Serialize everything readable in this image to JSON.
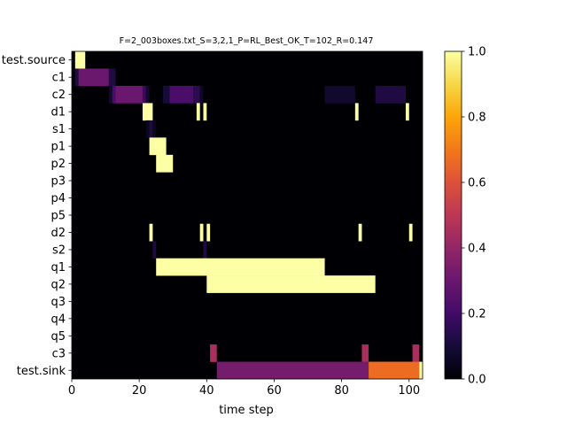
{
  "chart_data": {
    "type": "heatmap",
    "title": "F=2_003boxes.txt_S=3,2,1_P=RL_Best_OK_T=102_R=0.147",
    "xlabel": "time step",
    "ylabel": "",
    "xlim": [
      0,
      104
    ],
    "x_ticks": [
      0,
      20,
      40,
      60,
      80,
      100
    ],
    "rows": [
      "test.source",
      "c1",
      "c2",
      "d1",
      "s1",
      "p1",
      "p2",
      "p3",
      "p4",
      "p5",
      "d2",
      "s2",
      "q1",
      "q2",
      "q3",
      "q4",
      "q5",
      "c3",
      "test.sink"
    ],
    "background_value": 0.0,
    "segments": [
      {
        "row": "test.source",
        "x0": 1,
        "x1": 4,
        "value": 1.0
      },
      {
        "row": "c1",
        "x0": 0,
        "x1": 1,
        "value": 0.02
      },
      {
        "row": "c1",
        "x0": 1,
        "x1": 2,
        "value": 0.12
      },
      {
        "row": "c1",
        "x0": 2,
        "x1": 11,
        "value": 0.3
      },
      {
        "row": "c1",
        "x0": 11,
        "x1": 13,
        "value": 0.12
      },
      {
        "row": "c2",
        "x0": 11,
        "x1": 12,
        "value": 0.08
      },
      {
        "row": "c2",
        "x0": 12,
        "x1": 13,
        "value": 0.22
      },
      {
        "row": "c2",
        "x0": 13,
        "x1": 21,
        "value": 0.3
      },
      {
        "row": "c2",
        "x0": 21,
        "x1": 22,
        "value": 0.18
      },
      {
        "row": "c2",
        "x0": 22,
        "x1": 23,
        "value": 0.08
      },
      {
        "row": "c2",
        "x0": 27,
        "x1": 29,
        "value": 0.1
      },
      {
        "row": "c2",
        "x0": 29,
        "x1": 36,
        "value": 0.22
      },
      {
        "row": "c2",
        "x0": 36,
        "x1": 38,
        "value": 0.15
      },
      {
        "row": "c2",
        "x0": 38,
        "x1": 39,
        "value": 0.06
      },
      {
        "row": "c2",
        "x0": 75,
        "x1": 84,
        "value": 0.08
      },
      {
        "row": "c2",
        "x0": 90,
        "x1": 99,
        "value": 0.12
      },
      {
        "row": "d1",
        "x0": 21,
        "x1": 24,
        "value": 1.0
      },
      {
        "row": "d1",
        "x0": 37,
        "x1": 38,
        "value": 1.0
      },
      {
        "row": "d1",
        "x0": 39,
        "x1": 40,
        "value": 1.0
      },
      {
        "row": "d1",
        "x0": 84,
        "x1": 85,
        "value": 1.0
      },
      {
        "row": "d1",
        "x0": 99,
        "x1": 100,
        "value": 1.0
      },
      {
        "row": "s1",
        "x0": 22,
        "x1": 23,
        "value": 0.05
      },
      {
        "row": "s1",
        "x0": 23,
        "x1": 24,
        "value": 0.12
      },
      {
        "row": "s1",
        "x0": 24,
        "x1": 25,
        "value": 0.05
      },
      {
        "row": "p1",
        "x0": 23,
        "x1": 28,
        "value": 1.0
      },
      {
        "row": "p2",
        "x0": 25,
        "x1": 30,
        "value": 1.0
      },
      {
        "row": "d2",
        "x0": 23,
        "x1": 24,
        "value": 1.0
      },
      {
        "row": "d2",
        "x0": 38,
        "x1": 39,
        "value": 1.0
      },
      {
        "row": "d2",
        "x0": 40,
        "x1": 41,
        "value": 1.0
      },
      {
        "row": "d2",
        "x0": 85,
        "x1": 86,
        "value": 1.0
      },
      {
        "row": "d2",
        "x0": 100,
        "x1": 101,
        "value": 1.0
      },
      {
        "row": "s2",
        "x0": 24,
        "x1": 25,
        "value": 0.12
      },
      {
        "row": "s2",
        "x0": 39,
        "x1": 40,
        "value": 0.12
      },
      {
        "row": "q1",
        "x0": 25,
        "x1": 75,
        "value": 1.0
      },
      {
        "row": "q2",
        "x0": 40,
        "x1": 90,
        "value": 1.0
      },
      {
        "row": "c3",
        "x0": 41,
        "x1": 43,
        "value": 0.45
      },
      {
        "row": "c3",
        "x0": 86,
        "x1": 88,
        "value": 0.45
      },
      {
        "row": "c3",
        "x0": 101,
        "x1": 103,
        "value": 0.45
      },
      {
        "row": "test.sink",
        "x0": 43,
        "x1": 88,
        "value": 0.33
      },
      {
        "row": "test.sink",
        "x0": 88,
        "x1": 103,
        "value": 0.67
      },
      {
        "row": "test.sink",
        "x0": 103,
        "x1": 104,
        "value": 1.0
      }
    ],
    "colorbar": {
      "colormap": "inferno",
      "range": [
        0.0,
        1.0
      ],
      "ticks": [
        "0.0",
        "0.2",
        "0.4",
        "0.6",
        "0.8",
        "1.0"
      ]
    },
    "grid": false,
    "legend": "none"
  }
}
